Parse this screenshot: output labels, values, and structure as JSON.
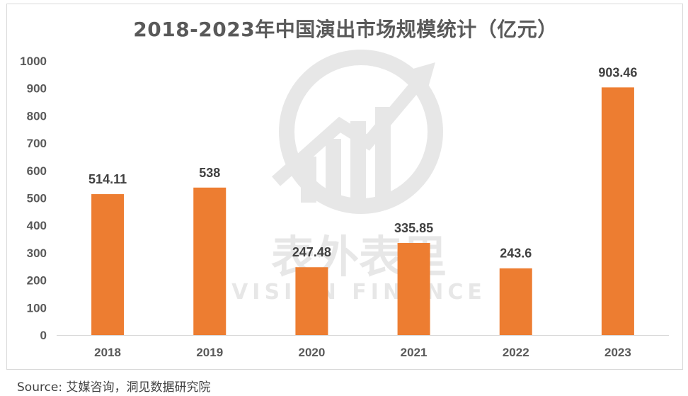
{
  "chart_data": {
    "type": "bar",
    "title": "2018-2023年中国演出市场规模统计（亿元）",
    "categories": [
      "2018",
      "2019",
      "2020",
      "2021",
      "2022",
      "2023"
    ],
    "values": [
      514.11,
      538,
      247.48,
      335.85,
      243.6,
      903.46
    ],
    "data_labels": [
      "514.11",
      "538",
      "247.48",
      "335.85",
      "243.6",
      "903.46"
    ],
    "y_ticks": [
      0,
      100,
      200,
      300,
      400,
      500,
      600,
      700,
      800,
      900,
      1000
    ],
    "ylim": [
      0,
      1000
    ],
    "xlabel": "",
    "ylabel": "",
    "grid": false,
    "bar_color": "#ED7D31"
  },
  "watermark": {
    "cn": "表外表里",
    "en": "VISION FINANCE"
  },
  "source": "Source: 艾媒咨询，洞见数据研究院"
}
